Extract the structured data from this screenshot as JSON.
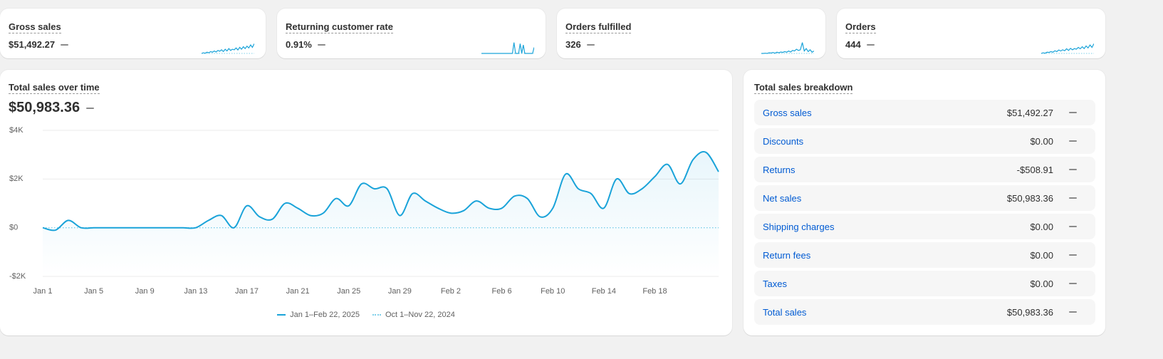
{
  "metrics": [
    {
      "title": "Gross sales",
      "value": "$51,492.27"
    },
    {
      "title": "Returning customer rate",
      "value": "0.91%"
    },
    {
      "title": "Orders fulfilled",
      "value": "326"
    },
    {
      "title": "Orders",
      "value": "444"
    }
  ],
  "sparklines": [
    [
      0,
      0.05,
      0.02,
      0.1,
      0.05,
      0.15,
      0.1,
      0.2,
      0.12,
      0.25,
      0.18,
      0.3,
      0.15,
      0.35,
      0.2,
      0.4,
      0.25,
      0.35,
      0.3,
      0.45,
      0.28,
      0.5,
      0.35,
      0.55,
      0.4,
      0.6,
      0.45,
      0.7,
      0.5,
      0.8
    ],
    [
      0,
      0,
      0,
      0,
      0,
      0,
      0,
      0,
      0,
      0,
      0,
      0,
      0,
      0,
      0,
      0,
      0,
      0,
      0,
      0,
      0,
      0.9,
      0,
      0,
      0,
      0.8,
      0,
      0.7,
      0,
      0,
      0,
      0,
      0,
      0,
      0.5
    ],
    [
      0,
      0,
      0.02,
      0,
      0.05,
      0.03,
      0.08,
      0.02,
      0.1,
      0.05,
      0.12,
      0.08,
      0.15,
      0.1,
      0.2,
      0.12,
      0.25,
      0.2,
      0.35,
      0.25,
      0.3,
      0.9,
      0.2,
      0.4,
      0.15,
      0.3,
      0.1,
      0.2
    ],
    [
      0,
      0.05,
      0.02,
      0.1,
      0.08,
      0.15,
      0.1,
      0.22,
      0.15,
      0.28,
      0.2,
      0.3,
      0.22,
      0.38,
      0.25,
      0.42,
      0.3,
      0.4,
      0.35,
      0.5,
      0.38,
      0.55,
      0.4,
      0.62,
      0.45,
      0.7,
      0.5,
      0.8
    ]
  ],
  "sales_card": {
    "title": "Total sales over time",
    "value": "$50,983.36"
  },
  "chart_data": {
    "type": "area",
    "title": "Total sales over time",
    "ylim": [
      -2000,
      4000
    ],
    "yticks": [
      {
        "value": 4000,
        "label": "$4K"
      },
      {
        "value": 2000,
        "label": "$2K"
      },
      {
        "value": 0,
        "label": "$0"
      },
      {
        "value": -2000,
        "label": "-$2K"
      }
    ],
    "x_ticks": [
      {
        "day": 0,
        "label": "Jan 1"
      },
      {
        "day": 4,
        "label": "Jan 5"
      },
      {
        "day": 8,
        "label": "Jan 9"
      },
      {
        "day": 12,
        "label": "Jan 13"
      },
      {
        "day": 16,
        "label": "Jan 17"
      },
      {
        "day": 20,
        "label": "Jan 21"
      },
      {
        "day": 24,
        "label": "Jan 25"
      },
      {
        "day": 28,
        "label": "Jan 29"
      },
      {
        "day": 32,
        "label": "Feb 2"
      },
      {
        "day": 36,
        "label": "Feb 6"
      },
      {
        "day": 40,
        "label": "Feb 10"
      },
      {
        "day": 44,
        "label": "Feb 14"
      },
      {
        "day": 48,
        "label": "Feb 18"
      }
    ],
    "grid": true,
    "legend_position": "bottom",
    "series": [
      {
        "name": "Jan 1–Feb 22, 2025",
        "color": "#1aa3d9",
        "style": "solid",
        "values": [
          0,
          -100,
          300,
          0,
          0,
          0,
          0,
          0,
          0,
          0,
          0,
          0,
          0,
          300,
          500,
          0,
          900,
          450,
          350,
          1000,
          800,
          500,
          600,
          1200,
          900,
          1800,
          1600,
          1600,
          500,
          1400,
          1100,
          800,
          600,
          700,
          1100,
          800,
          800,
          1300,
          1200,
          450,
          800,
          2200,
          1600,
          1400,
          800,
          2000,
          1400,
          1600,
          2100,
          2600,
          1800,
          2800,
          3100,
          2300
        ]
      },
      {
        "name": "Oct 1–Nov 22, 2024",
        "color": "#7fd0ea",
        "style": "dotted",
        "values": [
          0,
          0,
          0,
          0,
          0,
          0,
          0,
          0,
          0,
          0,
          0,
          0,
          0,
          0,
          0,
          0,
          0,
          0,
          0,
          0,
          0,
          0,
          0,
          0,
          0,
          0,
          0,
          0,
          0,
          0,
          0,
          0,
          0,
          0,
          0,
          0,
          0,
          0,
          0,
          0,
          0,
          0,
          0,
          0,
          0,
          0,
          0,
          0,
          0,
          0,
          0,
          0,
          0,
          0
        ]
      }
    ]
  },
  "breakdown": {
    "title": "Total sales breakdown",
    "rows": [
      {
        "label": "Gross sales",
        "value": "$51,492.27"
      },
      {
        "label": "Discounts",
        "value": "$0.00"
      },
      {
        "label": "Returns",
        "value": "-$508.91"
      },
      {
        "label": "Net sales",
        "value": "$50,983.36"
      },
      {
        "label": "Shipping charges",
        "value": "$0.00"
      },
      {
        "label": "Return fees",
        "value": "$0.00"
      },
      {
        "label": "Taxes",
        "value": "$0.00"
      },
      {
        "label": "Total sales",
        "value": "$50,983.36"
      }
    ]
  }
}
